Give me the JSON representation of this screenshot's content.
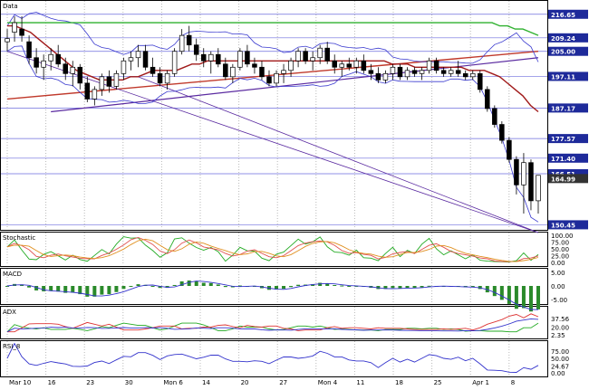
{
  "colors": {
    "grid": "#b9b9b9",
    "frame": "#000000",
    "up": "#ffffff",
    "down": "#000000",
    "band": "#3a3acf",
    "ma_red": "#a01a1a",
    "ma_green": "#2fb12f",
    "trend_purple": "#5a2aa0",
    "trend_red": "#c0392b",
    "hline": "#3030d0",
    "label_bg": "#1e2a9a",
    "label_text": "#ffffff",
    "stoch_k": "#22aa22",
    "stoch_d": "#e05050",
    "stoch_sd": "#e09020",
    "macd_bar": "#2a8a2a",
    "macd_line": "#3333cc",
    "adx_plus": "#22aa22",
    "adx_minus": "#dd3333",
    "adx": "#3333cc",
    "rsi": "#3333cc"
  },
  "panels": [
    {
      "name": "Data",
      "ylim": [
        150,
        220
      ],
      "tick_labels": [
        "216.65",
        "209.24",
        "205.00",
        "197.11",
        "187.17",
        "177.57",
        "171.40",
        "166.51",
        "164.99",
        "150.45"
      ],
      "label_colors": [
        "#1e2a9a",
        "#1e2a9a",
        "#1e2a9a",
        "#1e2a9a",
        "#1e2a9a",
        "#1e2a9a",
        "#1e2a9a",
        "#1e2a9a",
        "#333333",
        "#1e2a9a"
      ]
    },
    {
      "name": "Stochastic",
      "ylim": [
        -5,
        105
      ],
      "tick_labels": [
        "100.00",
        "75.00",
        "50.00",
        "25.00",
        "0.00"
      ]
    },
    {
      "name": "MACD",
      "ylim": [
        -6,
        6
      ],
      "tick_labels": [
        "5.00",
        "0.00",
        "-5.00"
      ]
    },
    {
      "name": "ADX",
      "ylim": [
        0,
        60
      ],
      "tick_labels": [
        "37.56",
        "20.00",
        "2.35"
      ]
    },
    {
      "name": "RSI_8",
      "ylim": [
        -5,
        105
      ],
      "tick_labels": [
        "75.00",
        "50.00",
        "24.67",
        "0.00"
      ]
    }
  ],
  "x_axis": {
    "labels": [
      "Mar 10",
      "16",
      "23",
      "30",
      "Mon 6",
      "14",
      "20",
      "27",
      "Mon 4",
      "11",
      "18",
      "25",
      "Apr 1",
      "8"
    ]
  },
  "chart_data": {
    "type": "candlestick",
    "title": "",
    "xlabel": "",
    "ylabel": "",
    "ylim": [
      150,
      220
    ],
    "ohlc": [
      [
        208,
        212,
        205,
        209
      ],
      [
        211,
        216,
        208,
        214
      ],
      [
        212,
        216,
        208,
        210
      ],
      [
        208,
        210,
        201,
        203
      ],
      [
        203,
        206,
        198,
        200
      ],
      [
        200,
        204,
        196,
        202
      ],
      [
        202,
        206,
        199,
        204
      ],
      [
        204,
        207,
        200,
        201
      ],
      [
        201,
        203,
        196,
        198
      ],
      [
        198,
        202,
        194,
        200
      ],
      [
        200,
        201,
        193,
        195
      ],
      [
        195,
        197,
        189,
        190
      ],
      [
        190,
        194,
        188,
        193
      ],
      [
        193,
        198,
        191,
        197
      ],
      [
        197,
        199,
        192,
        194
      ],
      [
        194,
        199,
        193,
        198
      ],
      [
        198,
        203,
        196,
        202
      ],
      [
        202,
        205,
        199,
        203
      ],
      [
        203,
        207,
        200,
        205
      ],
      [
        205,
        207,
        199,
        200
      ],
      [
        200,
        203,
        197,
        198
      ],
      [
        198,
        200,
        194,
        195
      ],
      [
        195,
        199,
        193,
        198
      ],
      [
        198,
        206,
        197,
        205
      ],
      [
        205,
        212,
        204,
        210
      ],
      [
        210,
        213,
        205,
        207
      ],
      [
        207,
        209,
        202,
        204
      ],
      [
        204,
        206,
        200,
        202
      ],
      [
        202,
        205,
        198,
        204
      ],
      [
        204,
        206,
        200,
        201
      ],
      [
        201,
        203,
        196,
        197
      ],
      [
        197,
        201,
        195,
        200
      ],
      [
        200,
        206,
        199,
        205
      ],
      [
        205,
        207,
        200,
        201
      ],
      [
        201,
        203,
        198,
        200
      ],
      [
        200,
        202,
        196,
        197
      ],
      [
        197,
        199,
        194,
        195
      ],
      [
        195,
        199,
        194,
        198
      ],
      [
        198,
        201,
        195,
        199
      ],
      [
        199,
        203,
        197,
        202
      ],
      [
        202,
        206,
        200,
        205
      ],
      [
        205,
        206,
        201,
        202
      ],
      [
        202,
        205,
        199,
        203
      ],
      [
        203,
        207,
        201,
        206
      ],
      [
        206,
        208,
        201,
        202
      ],
      [
        202,
        204,
        198,
        200
      ],
      [
        200,
        202,
        197,
        201
      ],
      [
        201,
        203,
        199,
        200
      ],
      [
        200,
        203,
        198,
        202
      ],
      [
        202,
        204,
        198,
        199
      ],
      [
        199,
        201,
        196,
        198
      ],
      [
        198,
        200,
        195,
        196
      ],
      [
        196,
        199,
        195,
        198
      ],
      [
        198,
        201,
        196,
        200
      ],
      [
        200,
        201,
        196,
        197
      ],
      [
        197,
        200,
        196,
        199
      ],
      [
        199,
        200,
        197,
        198
      ],
      [
        198,
        200,
        196,
        199
      ],
      [
        199,
        203,
        198,
        202
      ],
      [
        202,
        203,
        198,
        199
      ],
      [
        199,
        200,
        197,
        198
      ],
      [
        198,
        200,
        197,
        199
      ],
      [
        199,
        202,
        197,
        198
      ],
      [
        198,
        199,
        196,
        197
      ],
      [
        197,
        199,
        196,
        198
      ],
      [
        198,
        199,
        192,
        193
      ],
      [
        193,
        194,
        186,
        187
      ],
      [
        187,
        188,
        181,
        182
      ],
      [
        182,
        183,
        176,
        177
      ],
      [
        177,
        178,
        170,
        171
      ],
      [
        171,
        172,
        160,
        163
      ],
      [
        163,
        173,
        154,
        170
      ],
      [
        170,
        171,
        155,
        158
      ],
      [
        158,
        166,
        154,
        166
      ]
    ],
    "series": [
      {
        "name": "",
        "values": [
          213,
          213,
          212,
          211,
          209,
          207,
          205,
          203,
          201,
          199,
          198,
          197,
          196,
          196,
          196,
          196,
          197,
          197,
          198,
          199,
          199,
          199,
          199,
          200,
          201,
          201,
          202,
          202,
          202,
          202,
          202,
          202,
          202,
          202,
          202,
          202,
          202,
          202,
          202,
          202,
          202,
          202,
          202,
          202,
          202,
          202,
          202,
          202,
          202,
          202,
          201,
          201,
          201,
          200,
          200,
          200,
          200,
          200,
          200,
          200,
          199,
          199,
          199,
          198,
          197,
          195,
          193,
          191,
          188,
          186
        ]
      },
      {
        "name": "",
        "values": [
          214,
          214,
          214,
          214,
          214,
          214,
          214,
          214,
          214,
          214,
          214,
          214,
          214,
          214,
          214,
          214,
          214,
          214,
          214,
          214,
          214,
          214,
          214,
          214,
          214,
          214,
          214,
          214,
          214,
          214,
          214,
          214,
          214,
          214,
          214,
          214,
          214,
          214,
          214,
          214,
          214,
          214,
          214,
          214,
          214,
          214,
          214,
          214,
          214,
          214,
          214,
          214,
          214,
          214,
          214,
          214,
          214,
          214,
          214,
          214,
          214,
          214,
          214,
          214,
          213,
          213,
          212,
          212,
          211,
          210
        ]
      }
    ],
    "hlines": [
      216.65,
      209.24,
      205.0,
      197.11,
      187.17,
      177.57,
      171.4,
      166.51,
      150.45
    ]
  }
}
